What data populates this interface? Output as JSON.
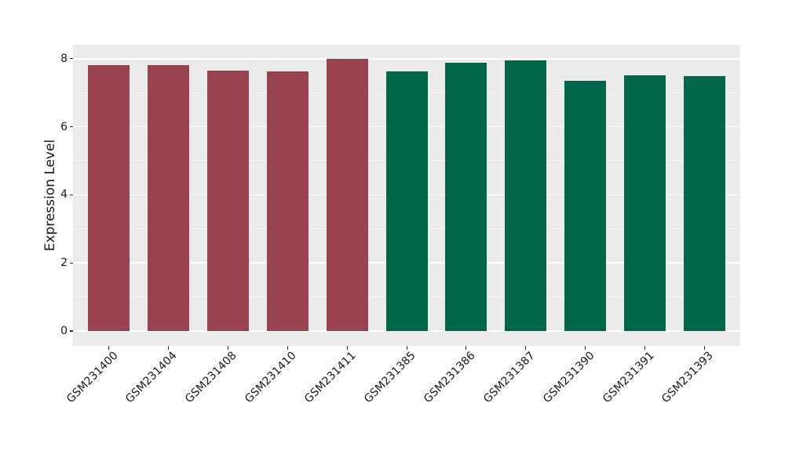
{
  "chart_data": {
    "type": "bar",
    "title": "",
    "xlabel": "",
    "ylabel": "Expression Level",
    "categories": [
      "GSM231400",
      "GSM231404",
      "GSM231408",
      "GSM231410",
      "GSM231411",
      "GSM231385",
      "GSM231386",
      "GSM231387",
      "GSM231390",
      "GSM231391",
      "GSM231393"
    ],
    "values": [
      7.8,
      7.82,
      7.66,
      7.63,
      8.0,
      7.63,
      7.89,
      7.95,
      7.34,
      7.52,
      7.49
    ],
    "bar_colors": [
      "#9A4350",
      "#9A4350",
      "#9A4350",
      "#9A4350",
      "#9A4350",
      "#02664A",
      "#02664A",
      "#02664A",
      "#02664A",
      "#02664A",
      "#02664A"
    ],
    "yticks": [
      0,
      2,
      4,
      6,
      8
    ],
    "ytick_labels": [
      "0",
      "2",
      "4",
      "6",
      "8"
    ],
    "minor_yticks": [
      1,
      3,
      5,
      7
    ],
    "ylim": [
      -0.44,
      8.41
    ],
    "x_tick_rotation": 45,
    "grid": true,
    "legend": false,
    "colors": {
      "figure_background": "#FFFFFF",
      "panel_background": "#EBEBEB",
      "grid": "#FFFFFF",
      "tick_mark": "#333333",
      "text": "#1A1A1A"
    }
  }
}
